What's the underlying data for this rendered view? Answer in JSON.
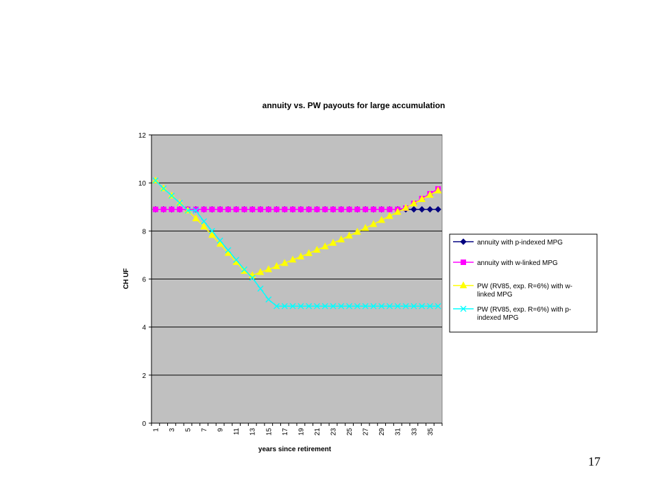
{
  "slide": {
    "page_number": "17"
  },
  "chart_data": {
    "type": "line",
    "title": "annuity vs. PW payouts for large accumulation",
    "xlabel": "years since retirement",
    "ylabel": "CH UF",
    "ylim": [
      0,
      12
    ],
    "yticks": [
      0,
      2,
      4,
      6,
      8,
      10,
      12
    ],
    "x": [
      1,
      2,
      3,
      4,
      5,
      6,
      7,
      8,
      9,
      10,
      11,
      12,
      13,
      14,
      15,
      16,
      17,
      18,
      19,
      20,
      21,
      22,
      23,
      24,
      25,
      26,
      27,
      28,
      29,
      30,
      31,
      32,
      33,
      34,
      35,
      36
    ],
    "xtick_labels": [
      "1",
      "3",
      "5",
      "7",
      "9",
      "11",
      "13",
      "15",
      "17",
      "19",
      "21",
      "23",
      "25",
      "27",
      "29",
      "31",
      "33",
      "35"
    ],
    "grid": "horizontal",
    "plot_background": "#c0c0c0",
    "legend_position": "right",
    "series": [
      {
        "name": "annuity with p-indexed MPG",
        "color": "#000080",
        "marker": "diamond",
        "values": [
          8.9,
          8.9,
          8.9,
          8.9,
          8.9,
          8.9,
          8.9,
          8.9,
          8.9,
          8.9,
          8.9,
          8.9,
          8.9,
          8.9,
          8.9,
          8.9,
          8.9,
          8.9,
          8.9,
          8.9,
          8.9,
          8.9,
          8.9,
          8.9,
          8.9,
          8.9,
          8.9,
          8.9,
          8.9,
          8.9,
          8.9,
          8.9,
          8.9,
          8.9,
          8.9,
          8.9
        ]
      },
      {
        "name": "annuity with w-linked MPG",
        "color": "#ff00ff",
        "marker": "square",
        "values": [
          8.9,
          8.9,
          8.9,
          8.9,
          8.9,
          8.9,
          8.9,
          8.9,
          8.9,
          8.9,
          8.9,
          8.9,
          8.9,
          8.9,
          8.9,
          8.9,
          8.9,
          8.9,
          8.9,
          8.9,
          8.9,
          8.9,
          8.9,
          8.9,
          8.9,
          8.9,
          8.9,
          8.9,
          8.9,
          8.9,
          8.9,
          8.95,
          9.15,
          9.35,
          9.55,
          9.75
        ]
      },
      {
        "name": "PW (RV85, exp. R=6%) with w-linked MPG",
        "color": "#ffff00",
        "marker": "triangle",
        "values": [
          10.1,
          9.77,
          9.47,
          9.17,
          8.85,
          8.52,
          8.18,
          7.83,
          7.46,
          7.08,
          6.7,
          6.33,
          6.15,
          6.28,
          6.4,
          6.53,
          6.66,
          6.8,
          6.93,
          7.07,
          7.21,
          7.35,
          7.5,
          7.64,
          7.8,
          7.96,
          8.12,
          8.28,
          8.45,
          8.62,
          8.79,
          8.96,
          9.14,
          9.32,
          9.5,
          9.68
        ]
      },
      {
        "name": "PW (RV85, exp. R=6%) with p-indexed MPG",
        "color": "#00ffff",
        "marker": "x",
        "values": [
          10.1,
          9.77,
          9.47,
          9.17,
          8.85,
          8.85,
          8.4,
          8.0,
          7.6,
          7.2,
          6.8,
          6.4,
          6.05,
          5.6,
          5.15,
          4.87,
          4.87,
          4.87,
          4.87,
          4.87,
          4.87,
          4.87,
          4.87,
          4.87,
          4.87,
          4.87,
          4.87,
          4.87,
          4.87,
          4.87,
          4.87,
          4.87,
          4.87,
          4.87,
          4.87,
          4.87
        ]
      }
    ],
    "legend_lines": [
      [
        "annuity with p-indexed MPG"
      ],
      [
        "annuity with w-linked MPG"
      ],
      [
        "PW (RV85, exp. R=6%) with w-",
        "linked MPG"
      ],
      [
        "PW (RV85, exp. R=6%) with p-",
        "indexed MPG"
      ]
    ]
  }
}
